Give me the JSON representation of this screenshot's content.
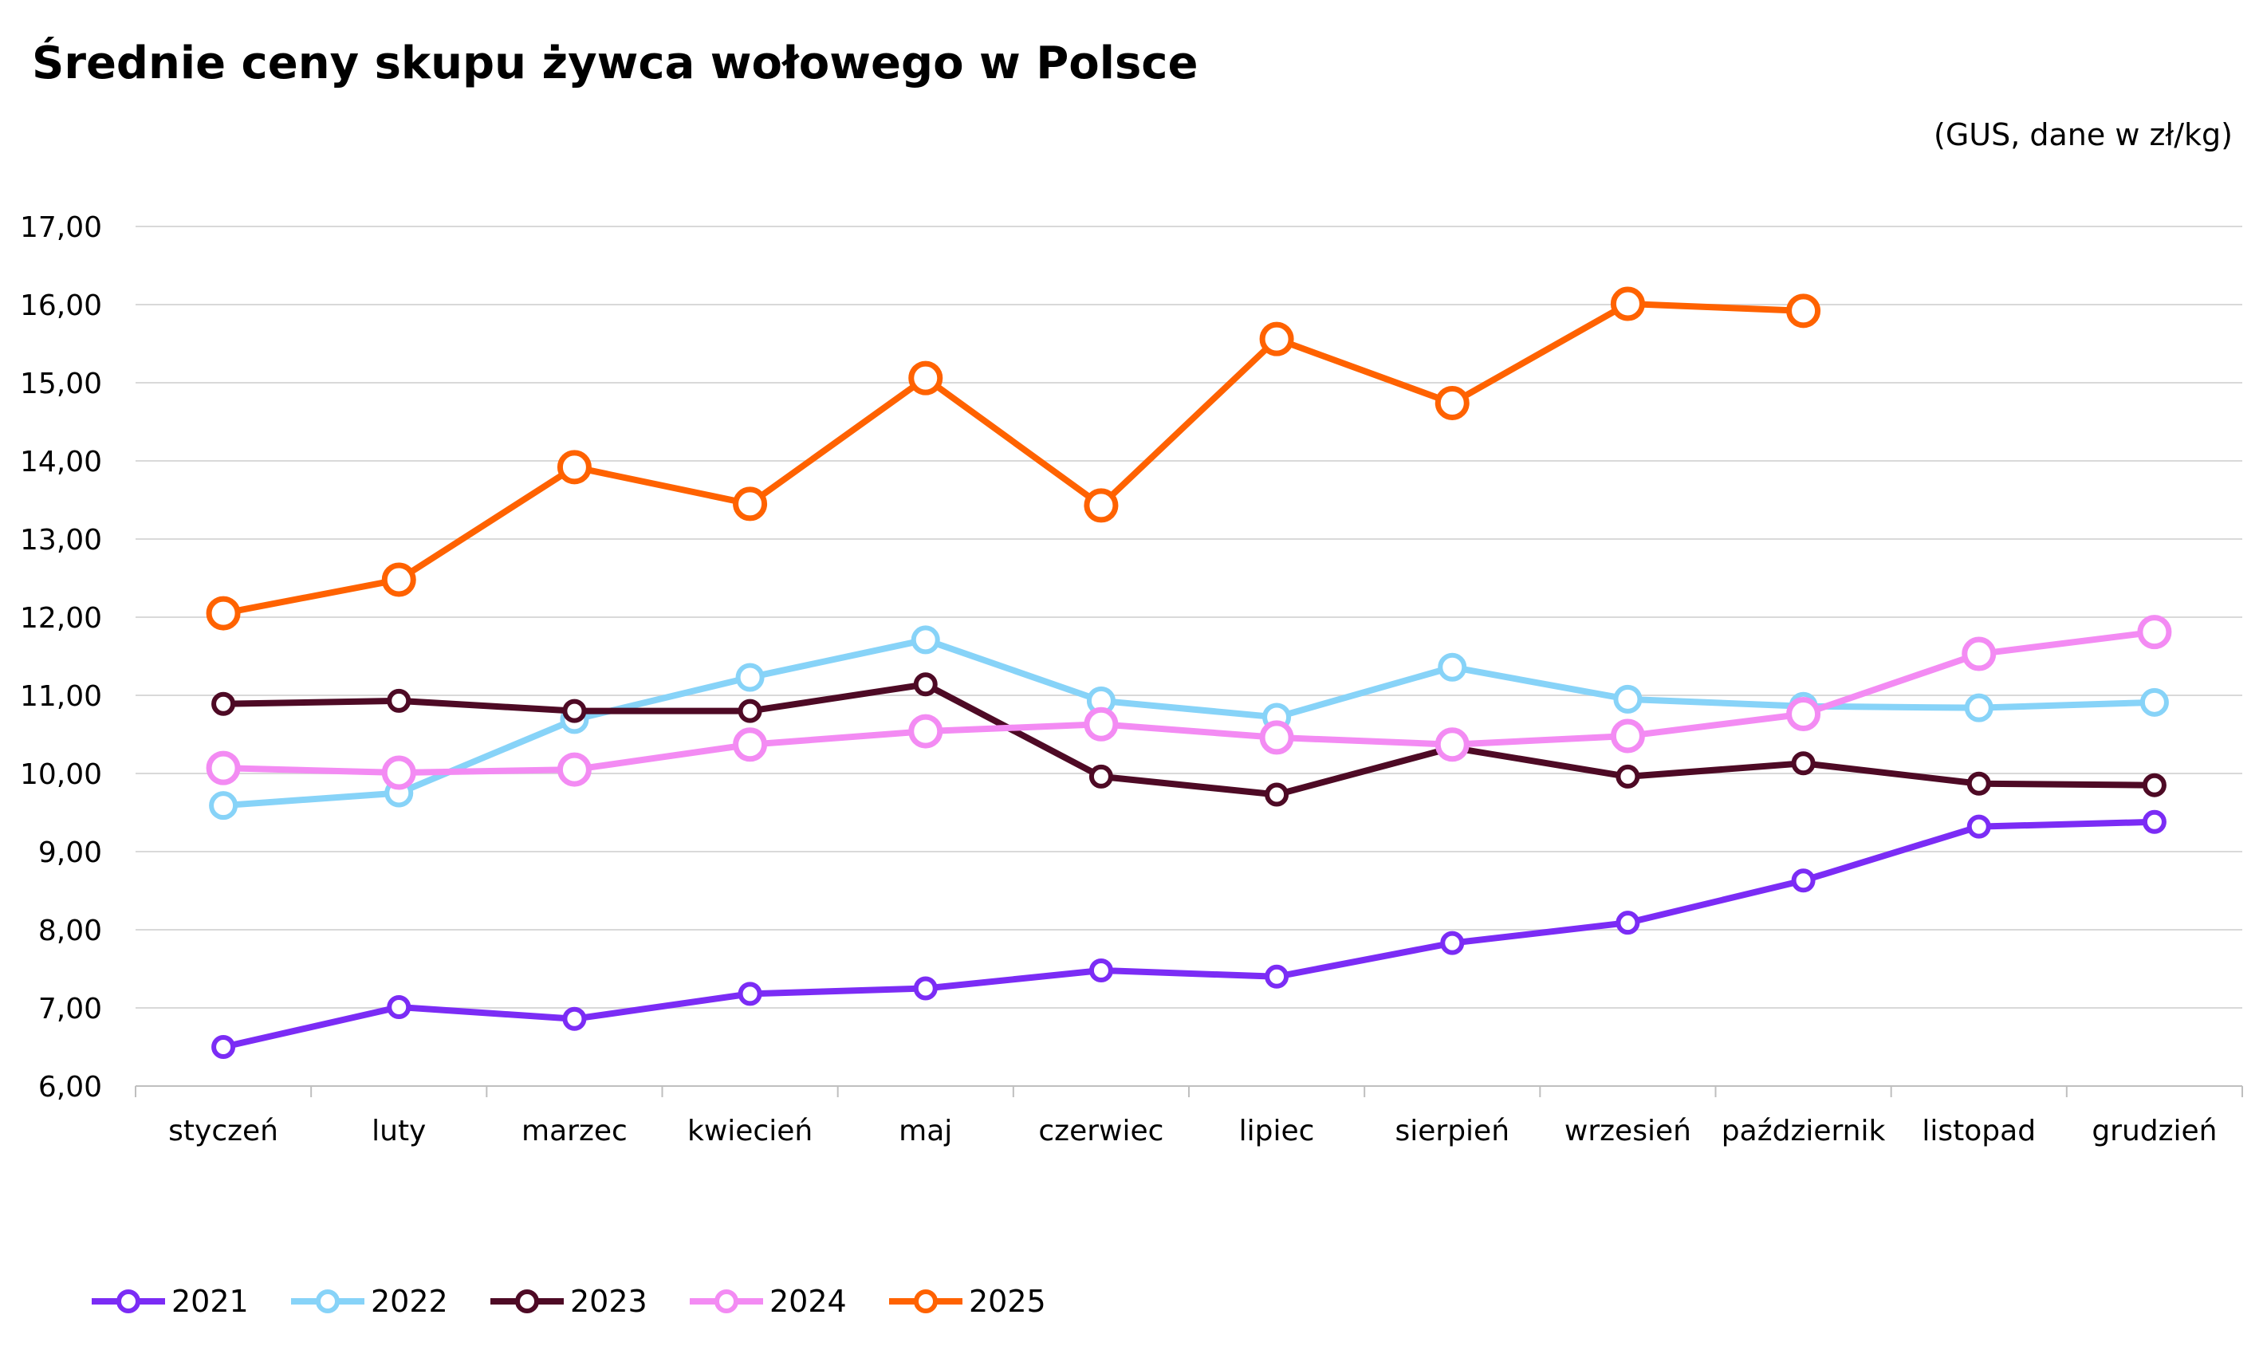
{
  "chart_data": {
    "type": "line",
    "title": "Średnie ceny skupu żywca wołowego w Polsce",
    "subtitle": "(GUS, dane w zł/kg)",
    "xlabel": "",
    "ylabel": "",
    "ylim": [
      6,
      17
    ],
    "yticks": [
      "6,00",
      "7,00",
      "8,00",
      "9,00",
      "10,00",
      "11,00",
      "12,00",
      "13,00",
      "14,00",
      "15,00",
      "16,00",
      "17,00"
    ],
    "grid": true,
    "legend_position": "bottom-left",
    "categories": [
      "styczeń",
      "luty",
      "marzec",
      "kwiecień",
      "maj",
      "czerwiec",
      "lipiec",
      "sierpień",
      "wrzesień",
      "październik",
      "listopad",
      "grudzień"
    ],
    "series": [
      {
        "name": "2021",
        "color": "#7b2cf5",
        "values": [
          6.5,
          7.01,
          6.86,
          7.18,
          7.25,
          7.48,
          7.4,
          7.83,
          8.09,
          8.63,
          9.32,
          9.38
        ]
      },
      {
        "name": "2022",
        "color": "#87d3f8",
        "values": [
          9.59,
          9.75,
          10.69,
          11.23,
          11.71,
          10.93,
          10.72,
          11.36,
          10.95,
          10.86,
          10.84,
          10.91
        ]
      },
      {
        "name": "2023",
        "color": "#4e0a25",
        "values": [
          10.89,
          10.93,
          10.8,
          10.8,
          11.14,
          9.96,
          9.73,
          10.33,
          9.96,
          10.13,
          9.87,
          9.85
        ]
      },
      {
        "name": "2024",
        "color": "#f38bf3",
        "values": [
          10.07,
          10.01,
          10.05,
          10.37,
          10.54,
          10.63,
          10.46,
          10.37,
          10.48,
          10.76,
          11.53,
          11.81
        ]
      },
      {
        "name": "2025",
        "color": "#ff6200",
        "values": [
          12.05,
          12.48,
          13.92,
          13.45,
          15.06,
          13.43,
          15.56,
          14.74,
          16.01,
          15.92,
          null,
          null
        ]
      }
    ]
  }
}
